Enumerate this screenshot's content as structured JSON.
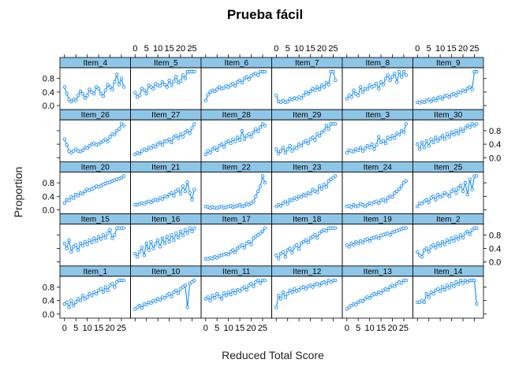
{
  "chart_data": {
    "type": "line",
    "title": "Prueba fácil",
    "xlabel": "Reduced Total Score",
    "ylabel": "Proportion",
    "xlim": [
      -2,
      29
    ],
    "ylim": [
      -0.12,
      1.12
    ],
    "x_ticks": [
      0,
      5,
      10,
      15,
      20,
      25
    ],
    "x_tick_labels": [
      "0",
      "5",
      "10",
      "15",
      "20",
      "25"
    ],
    "y_ticks": [
      0.0,
      0.4,
      0.8
    ],
    "y_tick_labels": [
      "0.0",
      "0.4",
      "0.8"
    ],
    "layout": {
      "columns": 6,
      "rows": 5
    },
    "x": [
      0,
      1,
      2,
      3,
      4,
      5,
      6,
      7,
      8,
      9,
      10,
      11,
      12,
      13,
      14,
      15,
      16,
      17,
      18,
      19,
      20,
      21,
      22,
      23,
      24,
      25,
      26
    ],
    "colors": {
      "line": "#0080ff",
      "strip": "#8ec6e8",
      "frame": "#000000"
    },
    "panels": [
      {
        "name": "Item_4",
        "values": [
          0.55,
          0.35,
          0.18,
          0.12,
          0.18,
          0.15,
          0.3,
          0.42,
          0.35,
          0.22,
          0.3,
          0.48,
          0.4,
          0.35,
          0.55,
          0.5,
          0.35,
          0.28,
          0.45,
          0.62,
          0.55,
          0.48,
          0.7,
          0.92,
          0.62,
          0.8,
          0.55
        ]
      },
      {
        "name": "Item_5",
        "values": [
          0.38,
          0.25,
          0.3,
          0.5,
          0.45,
          0.35,
          0.6,
          0.55,
          0.5,
          0.65,
          0.6,
          0.58,
          0.7,
          0.62,
          0.55,
          0.75,
          0.6,
          0.72,
          0.85,
          0.68,
          0.72,
          0.9,
          0.8,
          1.0,
          1.0,
          1.0,
          1.0
        ]
      },
      {
        "name": "Item_6",
        "values": [
          0.15,
          0.32,
          0.4,
          0.45,
          0.42,
          0.48,
          0.55,
          0.5,
          0.52,
          0.58,
          0.55,
          0.6,
          0.65,
          0.58,
          0.7,
          0.75,
          0.68,
          0.8,
          0.85,
          0.78,
          0.88,
          0.92,
          0.95,
          0.9,
          1.0,
          1.0,
          1.0
        ]
      },
      {
        "name": "Item_7",
        "values": [
          0.3,
          0.12,
          0.1,
          0.15,
          0.1,
          0.12,
          0.2,
          0.18,
          0.22,
          0.2,
          0.25,
          0.22,
          0.3,
          0.4,
          0.35,
          0.42,
          0.5,
          0.45,
          0.55,
          0.48,
          0.6,
          0.55,
          0.68,
          0.62,
          1.0,
          1.0,
          0.75
        ]
      },
      {
        "name": "Item_8",
        "values": [
          0.2,
          0.3,
          0.25,
          0.45,
          0.35,
          0.3,
          0.55,
          0.4,
          0.5,
          0.48,
          0.6,
          0.55,
          0.58,
          0.65,
          0.5,
          0.7,
          0.62,
          0.8,
          0.9,
          0.75,
          0.85,
          0.95,
          0.7,
          1.0,
          0.85,
          1.0,
          0.9
        ]
      },
      {
        "name": "Item_9",
        "values": [
          0.1,
          0.08,
          0.12,
          0.1,
          0.15,
          0.18,
          0.12,
          0.2,
          0.15,
          0.22,
          0.25,
          0.2,
          0.28,
          0.3,
          0.25,
          0.32,
          0.35,
          0.3,
          0.4,
          0.38,
          0.45,
          0.42,
          0.5,
          0.55,
          0.48,
          1.0,
          1.0
        ]
      },
      {
        "name": "Item_26",
        "values": [
          0.55,
          0.38,
          0.2,
          0.15,
          0.2,
          0.25,
          0.2,
          0.18,
          0.22,
          0.3,
          0.28,
          0.35,
          0.4,
          0.42,
          0.38,
          0.4,
          0.45,
          0.5,
          0.55,
          0.48,
          0.62,
          0.7,
          0.68,
          0.8,
          0.85,
          1.0,
          0.95
        ]
      },
      {
        "name": "Item_27",
        "values": [
          0.1,
          0.15,
          0.12,
          0.2,
          0.25,
          0.22,
          0.3,
          0.28,
          0.35,
          0.32,
          0.4,
          0.45,
          0.38,
          0.5,
          0.48,
          0.55,
          0.45,
          0.6,
          0.65,
          0.58,
          0.7,
          0.62,
          0.75,
          0.8,
          0.72,
          0.88,
          1.0
        ]
      },
      {
        "name": "Item_28",
        "values": [
          0.1,
          0.2,
          0.15,
          0.25,
          0.3,
          0.22,
          0.35,
          0.4,
          0.32,
          0.45,
          0.5,
          0.42,
          0.55,
          0.48,
          0.6,
          0.52,
          0.8,
          0.55,
          0.65,
          0.7,
          0.62,
          0.75,
          0.85,
          0.78,
          0.9,
          1.0,
          0.95
        ]
      },
      {
        "name": "Item_29",
        "values": [
          0.25,
          0.12,
          0.2,
          0.3,
          0.15,
          0.25,
          0.35,
          0.2,
          0.3,
          0.28,
          0.4,
          0.35,
          0.45,
          0.5,
          0.42,
          0.55,
          0.6,
          0.52,
          0.7,
          0.65,
          0.75,
          0.8,
          0.95,
          0.85,
          1.0,
          1.0,
          1.0
        ]
      },
      {
        "name": "Item_3",
        "values": [
          0.15,
          0.22,
          0.2,
          0.18,
          0.25,
          0.22,
          0.3,
          0.2,
          0.28,
          0.35,
          0.3,
          0.4,
          0.25,
          0.38,
          0.62,
          0.45,
          0.5,
          0.42,
          0.6,
          0.55,
          0.65,
          0.58,
          0.72,
          0.68,
          0.8,
          0.75,
          1.0
        ]
      },
      {
        "name": "Item_30",
        "values": [
          0.4,
          0.25,
          0.45,
          0.3,
          0.5,
          0.35,
          0.55,
          0.45,
          0.6,
          0.5,
          0.58,
          0.65,
          0.55,
          0.7,
          0.62,
          0.75,
          0.68,
          0.8,
          0.72,
          0.85,
          0.78,
          0.88,
          0.95,
          0.9,
          1.0,
          0.95,
          1.0
        ]
      },
      {
        "name": "Item_20",
        "values": [
          0.2,
          0.3,
          0.28,
          0.38,
          0.35,
          0.45,
          0.42,
          0.5,
          0.48,
          0.55,
          0.6,
          0.58,
          0.62,
          0.65,
          0.7,
          0.68,
          0.72,
          0.75,
          0.78,
          0.8,
          0.82,
          0.85,
          0.88,
          0.9,
          0.92,
          0.95,
          1.0
        ]
      },
      {
        "name": "Item_21",
        "values": [
          0.15,
          0.15,
          0.18,
          0.2,
          0.18,
          0.22,
          0.25,
          0.22,
          0.28,
          0.3,
          0.28,
          0.35,
          0.32,
          0.4,
          0.38,
          0.45,
          0.5,
          0.42,
          0.55,
          0.6,
          0.48,
          0.7,
          0.55,
          0.82,
          0.5,
          0.3,
          0.6
        ]
      },
      {
        "name": "Item_22",
        "values": [
          0.1,
          0.08,
          0.05,
          0.08,
          0.06,
          0.05,
          0.08,
          0.1,
          0.06,
          0.08,
          0.1,
          0.12,
          0.08,
          0.1,
          0.12,
          0.15,
          0.1,
          0.12,
          0.18,
          0.15,
          0.2,
          0.25,
          0.4,
          0.55,
          0.7,
          1.0,
          0.8
        ]
      },
      {
        "name": "Item_23",
        "values": [
          0.1,
          0.15,
          0.12,
          0.2,
          0.25,
          0.18,
          0.3,
          0.28,
          0.35,
          0.32,
          0.4,
          0.38,
          0.45,
          0.42,
          0.5,
          0.48,
          0.6,
          0.55,
          0.52,
          0.7,
          0.62,
          0.75,
          0.68,
          0.85,
          0.9,
          0.95,
          1.0
        ]
      },
      {
        "name": "Item_24",
        "values": [
          0.1,
          0.12,
          0.08,
          0.15,
          0.1,
          0.12,
          0.18,
          0.15,
          0.1,
          0.15,
          0.2,
          0.18,
          0.22,
          0.25,
          0.2,
          0.28,
          0.3,
          0.25,
          0.35,
          0.4,
          0.38,
          0.5,
          0.55,
          0.62,
          0.7,
          0.8,
          0.85
        ]
      },
      {
        "name": "Item_25",
        "values": [
          0.1,
          0.2,
          0.18,
          0.25,
          0.3,
          0.22,
          0.35,
          0.4,
          0.3,
          0.45,
          0.38,
          0.42,
          0.5,
          0.45,
          0.4,
          0.55,
          0.6,
          0.5,
          0.65,
          0.72,
          0.55,
          0.8,
          0.45,
          0.9,
          0.6,
          1.0,
          1.0
        ]
      },
      {
        "name": "Item_15",
        "values": [
          0.55,
          0.4,
          0.65,
          0.3,
          0.45,
          0.5,
          0.35,
          0.55,
          0.48,
          0.6,
          0.52,
          0.65,
          0.58,
          0.7,
          0.62,
          0.75,
          0.68,
          0.8,
          0.72,
          0.85,
          0.95,
          0.7,
          0.8,
          1.0,
          1.0,
          1.0,
          1.0
        ]
      },
      {
        "name": "Item_16",
        "values": [
          0.25,
          0.15,
          0.3,
          0.42,
          0.2,
          0.55,
          0.35,
          0.6,
          0.4,
          0.52,
          0.65,
          0.45,
          0.7,
          0.55,
          0.75,
          0.6,
          0.8,
          0.65,
          0.85,
          0.72,
          0.9,
          0.78,
          0.95,
          0.85,
          1.0,
          0.9,
          1.0
        ]
      },
      {
        "name": "Item_17",
        "values": [
          0.1,
          0.08,
          0.12,
          0.1,
          0.15,
          0.12,
          0.18,
          0.2,
          0.22,
          0.25,
          0.22,
          0.3,
          0.35,
          0.28,
          0.4,
          0.45,
          0.5,
          0.42,
          0.55,
          0.6,
          0.52,
          0.7,
          0.75,
          0.8,
          0.85,
          0.9,
          1.0
        ]
      },
      {
        "name": "Item_18",
        "values": [
          0.2,
          0.1,
          0.25,
          0.3,
          0.15,
          0.35,
          0.4,
          0.28,
          0.45,
          0.5,
          0.38,
          0.55,
          0.6,
          0.65,
          0.58,
          0.7,
          0.75,
          0.8,
          0.72,
          0.85,
          0.9,
          0.95,
          0.92,
          1.0,
          1.0,
          1.0,
          1.0
        ]
      },
      {
        "name": "Item_19",
        "values": [
          0.5,
          0.45,
          0.55,
          0.5,
          0.6,
          0.55,
          0.62,
          0.58,
          0.65,
          0.68,
          0.62,
          0.7,
          0.72,
          0.75,
          0.7,
          0.78,
          0.8,
          0.82,
          0.85,
          0.8,
          0.88,
          0.9,
          0.92,
          0.95,
          0.98,
          1.0,
          1.0
        ]
      },
      {
        "name": "Item_2",
        "values": [
          0.3,
          0.2,
          0.15,
          0.35,
          0.4,
          0.3,
          0.45,
          0.5,
          0.42,
          0.55,
          0.48,
          0.6,
          0.52,
          0.65,
          0.58,
          0.7,
          0.62,
          0.75,
          0.68,
          0.8,
          0.72,
          0.85,
          0.9,
          0.82,
          0.95,
          1.0,
          1.0
        ]
      },
      {
        "name": "Item_1",
        "values": [
          0.3,
          0.35,
          0.2,
          0.4,
          0.25,
          0.35,
          0.45,
          0.4,
          0.55,
          0.45,
          0.5,
          0.6,
          0.55,
          0.65,
          0.6,
          0.7,
          0.75,
          0.65,
          0.8,
          0.7,
          0.85,
          0.9,
          0.8,
          0.95,
          1.0,
          1.0,
          1.0
        ]
      },
      {
        "name": "Item_10",
        "values": [
          0.15,
          0.2,
          0.25,
          0.18,
          0.3,
          0.28,
          0.35,
          0.32,
          0.4,
          0.38,
          0.45,
          0.42,
          0.5,
          0.48,
          0.55,
          0.6,
          0.52,
          0.65,
          0.7,
          0.62,
          0.75,
          0.8,
          0.85,
          0.2,
          0.9,
          0.95,
          1.0
        ]
      },
      {
        "name": "Item_11",
        "values": [
          0.45,
          0.5,
          0.4,
          0.55,
          0.48,
          0.6,
          0.52,
          0.45,
          0.62,
          0.55,
          0.65,
          0.58,
          0.7,
          0.62,
          0.72,
          0.68,
          0.75,
          0.8,
          0.72,
          0.85,
          0.9,
          0.82,
          0.95,
          1.0,
          0.92,
          1.0,
          1.0
        ]
      },
      {
        "name": "Item_12",
        "values": [
          0.2,
          0.55,
          0.45,
          0.65,
          0.5,
          0.6,
          0.7,
          0.65,
          0.75,
          0.68,
          0.72,
          0.78,
          0.8,
          0.75,
          0.82,
          0.85,
          0.8,
          0.88,
          0.9,
          0.85,
          0.92,
          0.95,
          0.9,
          1.0,
          0.95,
          1.0,
          1.0
        ]
      },
      {
        "name": "Item_13",
        "values": [
          0.15,
          0.2,
          0.25,
          0.3,
          0.28,
          0.35,
          0.4,
          0.38,
          0.45,
          0.5,
          0.48,
          0.55,
          0.6,
          0.58,
          0.65,
          0.62,
          0.7,
          0.75,
          0.72,
          0.8,
          0.85,
          0.82,
          0.9,
          0.95,
          0.92,
          1.0,
          1.0
        ]
      },
      {
        "name": "Item_14",
        "values": [
          0.35,
          0.35,
          0.4,
          0.35,
          0.6,
          0.5,
          0.65,
          0.6,
          0.7,
          0.75,
          0.68,
          0.8,
          0.72,
          0.85,
          0.78,
          0.9,
          0.82,
          0.95,
          0.88,
          1.0,
          0.92,
          1.0,
          0.95,
          1.0,
          1.0,
          1.0,
          0.3
        ]
      }
    ]
  }
}
